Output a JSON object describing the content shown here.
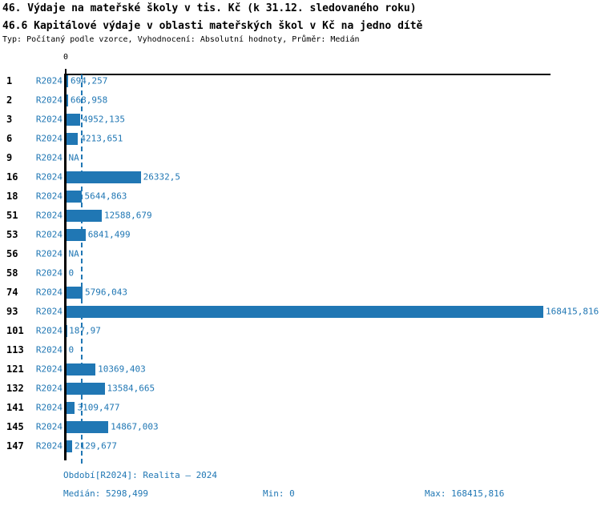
{
  "header": {
    "title1": "46. Výdaje na mateřské školy v tis. Kč (k 31.12. sledovaného roku)",
    "title2": "46.6 Kapitálové výdaje v oblasti mateřských škol v Kč na jedno dítě",
    "subtitle": "Typ: Počítaný podle vzorce, Vyhodnocení: Absolutní hodnoty, Průměr: Medián"
  },
  "axis": {
    "zero_label": "0"
  },
  "chart_data": {
    "type": "bar",
    "orientation": "horizontal",
    "bar_color": "#2077b4",
    "period_label": "R2024",
    "xlim": [
      0,
      168415.816
    ],
    "median": 5298.499,
    "min": 0,
    "max": 168415.816,
    "categories": [
      "1",
      "2",
      "3",
      "6",
      "9",
      "16",
      "18",
      "51",
      "53",
      "56",
      "58",
      "74",
      "93",
      "101",
      "113",
      "121",
      "132",
      "141",
      "145",
      "147"
    ],
    "rows": [
      {
        "id": "1",
        "period": "R2024",
        "value_label": "694,257",
        "value": 694.257
      },
      {
        "id": "2",
        "period": "R2024",
        "value_label": "668,958",
        "value": 668.958
      },
      {
        "id": "3",
        "period": "R2024",
        "value_label": "4952,135",
        "value": 4952.135
      },
      {
        "id": "6",
        "period": "R2024",
        "value_label": "4213,651",
        "value": 4213.651
      },
      {
        "id": "9",
        "period": "R2024",
        "value_label": "NA",
        "value": null
      },
      {
        "id": "16",
        "period": "R2024",
        "value_label": "26332,5",
        "value": 26332.5
      },
      {
        "id": "18",
        "period": "R2024",
        "value_label": "5644,863",
        "value": 5644.863
      },
      {
        "id": "51",
        "period": "R2024",
        "value_label": "12588,679",
        "value": 12588.679
      },
      {
        "id": "53",
        "period": "R2024",
        "value_label": "6841,499",
        "value": 6841.499
      },
      {
        "id": "56",
        "period": "R2024",
        "value_label": "NA",
        "value": null
      },
      {
        "id": "58",
        "period": "R2024",
        "value_label": "0",
        "value": 0
      },
      {
        "id": "74",
        "period": "R2024",
        "value_label": "5796,043",
        "value": 5796.043
      },
      {
        "id": "93",
        "period": "R2024",
        "value_label": "168415,816",
        "value": 168415.816
      },
      {
        "id": "101",
        "period": "R2024",
        "value_label": "187,97",
        "value": 187.97
      },
      {
        "id": "113",
        "period": "R2024",
        "value_label": "0",
        "value": 0
      },
      {
        "id": "121",
        "period": "R2024",
        "value_label": "10369,403",
        "value": 10369.403
      },
      {
        "id": "132",
        "period": "R2024",
        "value_label": "13584,665",
        "value": 13584.665
      },
      {
        "id": "141",
        "period": "R2024",
        "value_label": "3109,477",
        "value": 3109.477
      },
      {
        "id": "145",
        "period": "R2024",
        "value_label": "14867,003",
        "value": 14867.003
      },
      {
        "id": "147",
        "period": "R2024",
        "value_label": "2129,677",
        "value": 2129.677
      }
    ]
  },
  "footer": {
    "period_line": "Období[R2024]: Realita – 2024",
    "median_label": "Medián: 5298,499",
    "min_label": "Min: 0",
    "max_label": "Max: 168415,816"
  }
}
